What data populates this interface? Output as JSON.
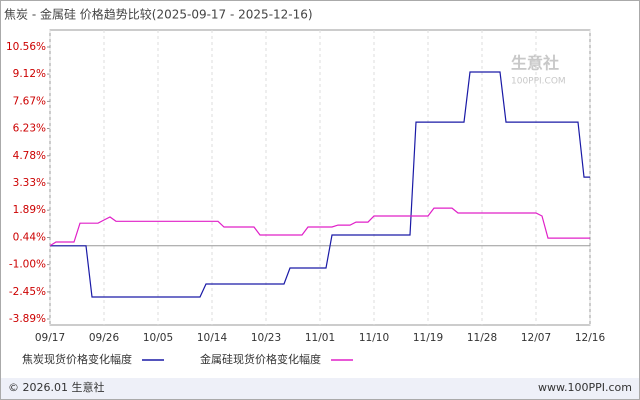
{
  "chart_data": {
    "type": "line",
    "title": "焦炭 - 金属硅 价格趋势比较(2025-09-17 - 2025-12-16)",
    "watermark": [
      "生意社",
      "100PPI.COM"
    ],
    "xlim": [
      "09/17",
      "12/16"
    ],
    "xticks": [
      "09/17",
      "09/26",
      "10/05",
      "10/14",
      "10/23",
      "11/01",
      "11/10",
      "11/19",
      "11/28",
      "12/07",
      "12/16"
    ],
    "ylim": [
      -3.89,
      10.56
    ],
    "yticks": [
      {
        "value": 10.56,
        "label": "10.56%"
      },
      {
        "value": 9.12,
        "label": "9.12%"
      },
      {
        "value": 7.67,
        "label": "7.67%"
      },
      {
        "value": 6.23,
        "label": "6.23%"
      },
      {
        "value": 4.78,
        "label": "4.78%"
      },
      {
        "value": 3.33,
        "label": "3.33%"
      },
      {
        "value": 1.89,
        "label": "1.89%"
      },
      {
        "value": 0.44,
        "label": "0.44%"
      },
      {
        "value": -1.0,
        "label": "-1.00%"
      },
      {
        "value": -2.45,
        "label": "-2.45%"
      },
      {
        "value": -3.89,
        "label": "-3.89%"
      }
    ],
    "grid": "x",
    "series": [
      {
        "name": "焦炭现货价格变化幅度",
        "color": "#1a1aa6",
        "x": [
          "09/17",
          "09/23",
          "09/24",
          "10/12",
          "10/13",
          "10/26",
          "10/27",
          "11/02",
          "11/03",
          "11/16",
          "11/17",
          "11/25",
          "11/26",
          "12/01",
          "12/02",
          "12/14",
          "12/15",
          "12/16"
        ],
        "values": [
          0,
          0,
          -2.72,
          -2.72,
          -2.03,
          -2.03,
          -1.18,
          -1.18,
          0.57,
          0.57,
          6.57,
          6.57,
          9.23,
          9.23,
          6.57,
          6.57,
          3.65,
          3.65
        ]
      },
      {
        "name": "金属硅现货价格变化幅度",
        "color": "#e020c8",
        "x": [
          "09/17",
          "09/18",
          "09/21",
          "09/22",
          "09/25",
          "09/26",
          "09/27",
          "09/28",
          "10/15",
          "10/16",
          "10/21",
          "10/22",
          "10/29",
          "10/30",
          "11/03",
          "11/04",
          "11/06",
          "11/07",
          "11/09",
          "11/10",
          "11/19",
          "11/20",
          "11/23",
          "11/24",
          "12/07",
          "12/08",
          "12/09",
          "12/16"
        ],
        "values": [
          0,
          0.2,
          0.2,
          1.2,
          1.2,
          1.37,
          1.53,
          1.3,
          1.3,
          1.0,
          1.0,
          0.57,
          0.57,
          1.0,
          1.0,
          1.1,
          1.1,
          1.26,
          1.26,
          1.58,
          1.58,
          2.0,
          2.0,
          1.74,
          1.74,
          1.58,
          0.41,
          0.41
        ]
      }
    ]
  },
  "footer": {
    "left": "© 2026.01 生意社",
    "right": "www.100PPI.com"
  }
}
